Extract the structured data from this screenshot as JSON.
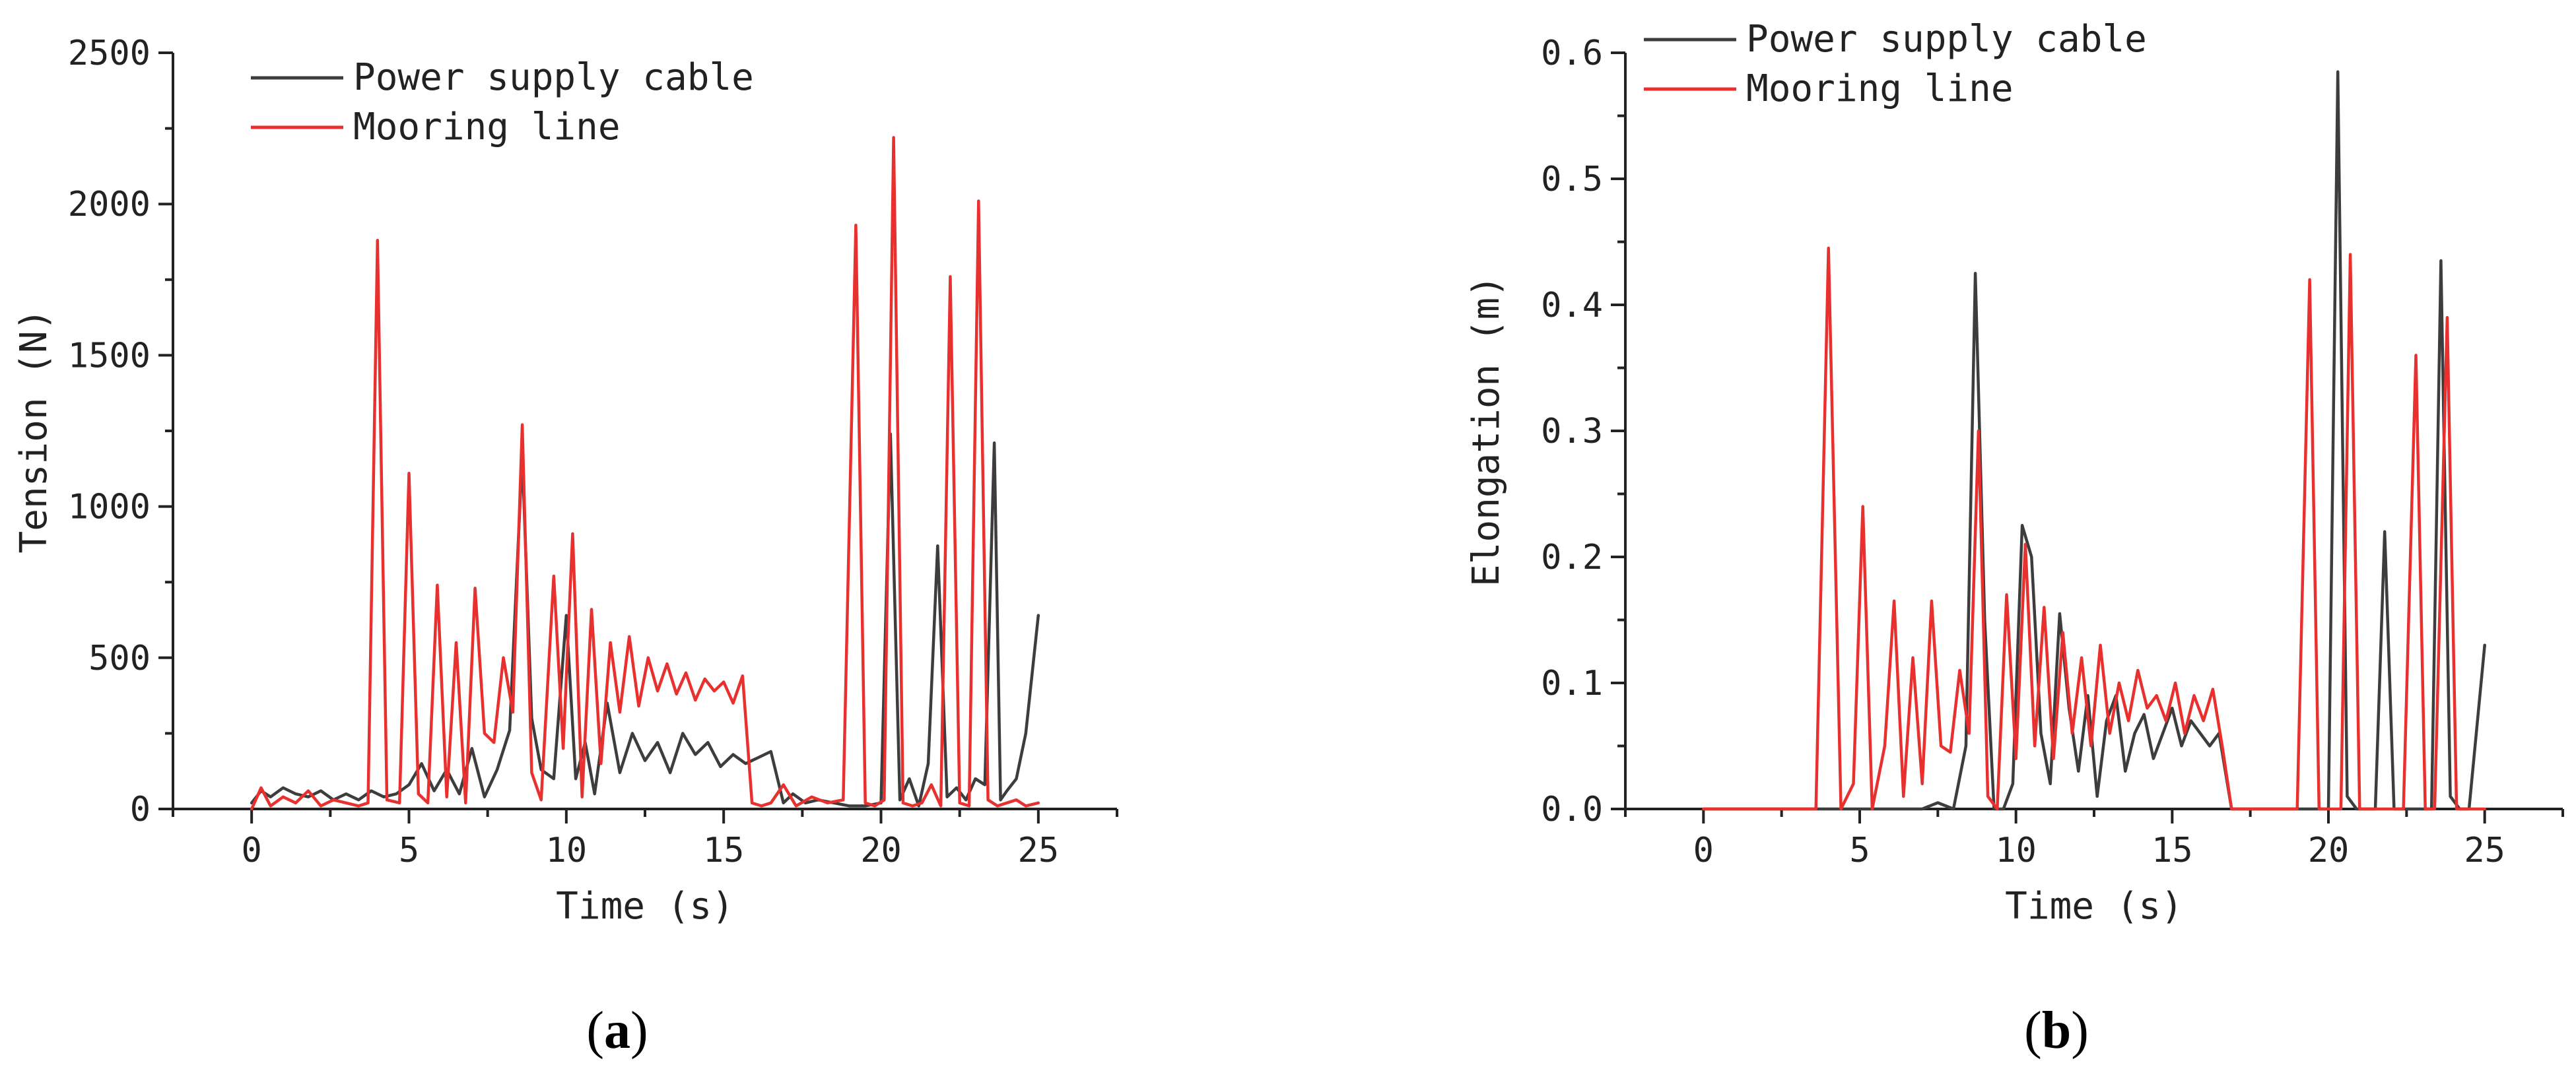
{
  "chart_data": [
    {
      "type": "line",
      "panel_label": "a",
      "xlabel": "Time (s)",
      "ylabel": "Tension (N)",
      "xlim": [
        -2.5,
        27.5
      ],
      "ylim": [
        0,
        2500
      ],
      "xticks": [
        0,
        5,
        10,
        15,
        20,
        25
      ],
      "yticks": [
        0,
        500,
        1000,
        1500,
        2000,
        2500
      ],
      "legend_position": "top-left",
      "series": [
        {
          "name": "Power supply cable",
          "color": "#3d3d3d",
          "x": [
            0,
            0.3,
            0.6,
            1.0,
            1.4,
            1.8,
            2.2,
            2.6,
            3.0,
            3.4,
            3.8,
            4.2,
            4.6,
            5.0,
            5.4,
            5.8,
            6.2,
            6.6,
            7.0,
            7.4,
            7.8,
            8.2,
            8.6,
            8.9,
            9.2,
            9.6,
            10.0,
            10.3,
            10.6,
            10.9,
            11.3,
            11.7,
            12.1,
            12.5,
            12.9,
            13.3,
            13.7,
            14.1,
            14.5,
            14.9,
            15.3,
            15.7,
            16.1,
            16.5,
            16.9,
            17.2,
            17.6,
            18.0,
            18.5,
            19.0,
            19.5,
            20.0,
            20.3,
            20.6,
            20.9,
            21.2,
            21.5,
            21.8,
            22.1,
            22.4,
            22.7,
            23.0,
            23.3,
            23.6,
            23.8,
            24.0,
            24.3,
            24.6,
            25.0
          ],
          "values": [
            20,
            60,
            40,
            70,
            50,
            40,
            60,
            30,
            50,
            30,
            60,
            40,
            50,
            80,
            150,
            60,
            130,
            50,
            200,
            40,
            130,
            260,
            1170,
            300,
            130,
            100,
            640,
            100,
            220,
            50,
            350,
            120,
            250,
            160,
            220,
            120,
            250,
            180,
            220,
            140,
            180,
            150,
            170,
            190,
            20,
            50,
            20,
            30,
            20,
            10,
            10,
            20,
            1240,
            30,
            100,
            10,
            150,
            870,
            40,
            70,
            30,
            100,
            80,
            1210,
            30,
            60,
            100,
            250,
            640
          ]
        },
        {
          "name": "Mooring line",
          "color": "#e8312f",
          "x": [
            0,
            0.3,
            0.6,
            1.0,
            1.4,
            1.8,
            2.2,
            2.6,
            3.0,
            3.4,
            3.7,
            4.0,
            4.3,
            4.7,
            5.0,
            5.3,
            5.6,
            5.9,
            6.2,
            6.5,
            6.8,
            7.1,
            7.4,
            7.7,
            8.0,
            8.3,
            8.6,
            8.9,
            9.2,
            9.6,
            9.9,
            10.2,
            10.5,
            10.8,
            11.1,
            11.4,
            11.7,
            12.0,
            12.3,
            12.6,
            12.9,
            13.2,
            13.5,
            13.8,
            14.1,
            14.4,
            14.7,
            15.0,
            15.3,
            15.6,
            15.9,
            16.2,
            16.5,
            16.9,
            17.3,
            17.8,
            18.3,
            18.8,
            19.2,
            19.5,
            19.8,
            20.1,
            20.4,
            20.7,
            21.0,
            21.3,
            21.6,
            21.9,
            22.2,
            22.5,
            22.8,
            23.1,
            23.4,
            23.7,
            24.0,
            24.3,
            24.6,
            25.0
          ],
          "values": [
            0,
            70,
            10,
            40,
            20,
            60,
            10,
            30,
            20,
            10,
            20,
            1880,
            30,
            20,
            1110,
            50,
            20,
            740,
            40,
            550,
            20,
            730,
            250,
            220,
            500,
            320,
            1270,
            120,
            30,
            770,
            200,
            910,
            40,
            660,
            150,
            550,
            320,
            570,
            340,
            500,
            390,
            480,
            380,
            450,
            360,
            430,
            390,
            420,
            350,
            440,
            20,
            10,
            20,
            80,
            10,
            40,
            20,
            30,
            1930,
            20,
            10,
            30,
            2220,
            20,
            10,
            20,
            80,
            10,
            1760,
            20,
            10,
            2010,
            30,
            10,
            20,
            30,
            10,
            20
          ]
        }
      ]
    },
    {
      "type": "line",
      "panel_label": "b",
      "xlabel": "Time (s)",
      "ylabel": "Elongation (m)",
      "xlim": [
        -2.5,
        27.5
      ],
      "ylim": [
        0,
        0.6
      ],
      "xticks": [
        0,
        5,
        10,
        15,
        20,
        25
      ],
      "yticks": [
        0.0,
        0.1,
        0.2,
        0.3,
        0.4,
        0.5,
        0.6
      ],
      "ytick_labels": [
        "0.0",
        "0.1",
        "0.2",
        "0.3",
        "0.4",
        "0.5",
        "0.6"
      ],
      "legend_position": "top-left",
      "series": [
        {
          "name": "Power supply cable",
          "color": "#3d3d3d",
          "x": [
            0,
            1,
            2,
            3,
            4,
            5,
            6,
            7,
            7.5,
            8.0,
            8.4,
            8.7,
            9.0,
            9.3,
            9.6,
            9.9,
            10.2,
            10.5,
            10.8,
            11.1,
            11.4,
            11.7,
            12.0,
            12.3,
            12.6,
            12.9,
            13.2,
            13.5,
            13.8,
            14.1,
            14.4,
            14.7,
            15.0,
            15.3,
            15.6,
            15.9,
            16.2,
            16.5,
            16.9,
            17.3,
            17.8,
            18.5,
            19.0,
            19.5,
            20.0,
            20.3,
            20.6,
            20.9,
            21.2,
            21.5,
            21.8,
            22.1,
            22.4,
            22.7,
            23.0,
            23.3,
            23.6,
            23.9,
            24.2,
            24.5,
            25.0
          ],
          "values": [
            0,
            0,
            0,
            0,
            0,
            0,
            0,
            0,
            0.005,
            0.0,
            0.05,
            0.425,
            0.15,
            0.0,
            0.0,
            0.02,
            0.225,
            0.2,
            0.06,
            0.02,
            0.155,
            0.08,
            0.03,
            0.09,
            0.01,
            0.07,
            0.09,
            0.03,
            0.06,
            0.075,
            0.04,
            0.06,
            0.08,
            0.05,
            0.07,
            0.06,
            0.05,
            0.06,
            0.0,
            0.0,
            0.0,
            0.0,
            0.0,
            0.0,
            0.0,
            0.585,
            0.01,
            0.0,
            0.0,
            0.0,
            0.22,
            0.0,
            0.0,
            0.0,
            0.0,
            0.0,
            0.435,
            0.01,
            0.0,
            0.0,
            0.13
          ]
        },
        {
          "name": "Mooring line",
          "color": "#e8312f",
          "x": [
            0,
            1,
            2,
            3,
            3.6,
            4.0,
            4.4,
            4.8,
            5.1,
            5.4,
            5.8,
            6.1,
            6.4,
            6.7,
            7.0,
            7.3,
            7.6,
            7.9,
            8.2,
            8.5,
            8.8,
            9.1,
            9.4,
            9.7,
            10.0,
            10.3,
            10.6,
            10.9,
            11.2,
            11.5,
            11.8,
            12.1,
            12.4,
            12.7,
            13.0,
            13.3,
            13.6,
            13.9,
            14.2,
            14.5,
            14.8,
            15.1,
            15.4,
            15.7,
            16.0,
            16.3,
            16.6,
            16.9,
            17.3,
            17.8,
            18.5,
            19.0,
            19.4,
            19.7,
            20.0,
            20.4,
            20.7,
            21.0,
            21.3,
            21.6,
            22.0,
            22.4,
            22.8,
            23.1,
            23.4,
            23.8,
            24.1,
            24.4,
            24.7,
            25.0
          ],
          "values": [
            0,
            0,
            0,
            0,
            0.0,
            0.445,
            0.0,
            0.02,
            0.24,
            0.0,
            0.05,
            0.165,
            0.01,
            0.12,
            0.02,
            0.165,
            0.05,
            0.045,
            0.11,
            0.06,
            0.3,
            0.01,
            0.0,
            0.17,
            0.04,
            0.21,
            0.05,
            0.16,
            0.04,
            0.14,
            0.06,
            0.12,
            0.05,
            0.13,
            0.06,
            0.1,
            0.07,
            0.11,
            0.08,
            0.09,
            0.07,
            0.1,
            0.06,
            0.09,
            0.07,
            0.095,
            0.05,
            0.0,
            0.0,
            0.0,
            0.0,
            0.0,
            0.42,
            0.0,
            0.0,
            0.0,
            0.44,
            0.0,
            0.0,
            0.0,
            0.0,
            0.0,
            0.36,
            0.0,
            0.0,
            0.39,
            0.0,
            0.0,
            0.0,
            0.0
          ]
        }
      ]
    }
  ]
}
